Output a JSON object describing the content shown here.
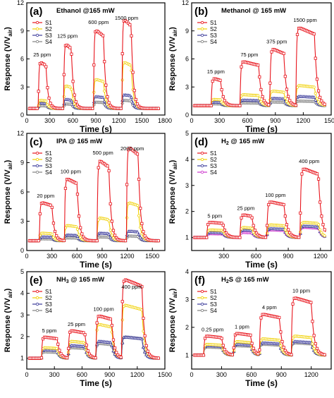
{
  "chart_data": [
    {
      "type": "line",
      "panel_label": "(a)",
      "title": "Ethanol @165 mW",
      "xlabel": "Time (s)",
      "ylabel": "Response (V/V",
      "ylabel_sub": "air",
      "ylabel_end": ")",
      "xlim": [
        0,
        1800
      ],
      "ylim": [
        0,
        12
      ],
      "xticks": [
        0,
        300,
        600,
        900,
        1200,
        1500,
        1800
      ],
      "yticks": [
        0,
        3,
        6,
        9,
        12
      ],
      "pulses": [
        [
          150,
          250
        ],
        [
          480,
          580
        ],
        [
          870,
          1000
        ],
        [
          1240,
          1360
        ]
      ],
      "baseline": 0.7,
      "series": [
        {
          "name": "S1",
          "color": "#e8141c",
          "peaks": [
            5.8,
            7.8,
            9.3,
            10.5
          ]
        },
        {
          "name": "S2",
          "color": "#f0d000",
          "peaks": [
            1.6,
            3.2,
            3.9,
            5.8
          ]
        },
        {
          "name": "S3",
          "color": "#3a3a9a",
          "peaks": [
            1.3,
            1.7,
            2.0,
            2.2
          ]
        },
        {
          "name": "S4",
          "color": "#808080",
          "peaks": [
            1.0,
            1.2,
            1.4,
            1.6
          ]
        }
      ],
      "annotations": [
        "25 ppm",
        "125 ppm",
        "600 ppm",
        "1500 ppm"
      ],
      "legend": "top-left"
    },
    {
      "type": "line",
      "panel_label": "(b)",
      "title": "Methanol @ 165 mW",
      "xlabel": "Time (s)",
      "ylabel": "Response (V/V",
      "ylabel_sub": "air",
      "ylabel_end": ")",
      "xlim": [
        0,
        1500
      ],
      "ylim": [
        0,
        12
      ],
      "xticks": [
        0,
        300,
        600,
        900,
        1200,
        1500
      ],
      "yticks": [
        0,
        3,
        6,
        9,
        12
      ],
      "pulses": [
        [
          210,
          310
        ],
        [
          520,
          720
        ],
        [
          840,
          990
        ],
        [
          1120,
          1320
        ]
      ],
      "baseline": 1.0,
      "series": [
        {
          "name": "S1",
          "color": "#e8141c",
          "peaks": [
            4.0,
            5.8,
            7.2,
            9.5
          ]
        },
        {
          "name": "S2",
          "color": "#f0d000",
          "peaks": [
            1.7,
            2.2,
            2.6,
            3.2
          ]
        },
        {
          "name": "S3",
          "color": "#3a3a9a",
          "peaks": [
            1.4,
            1.6,
            1.8,
            2.0
          ]
        },
        {
          "name": "S4",
          "color": "#808080",
          "peaks": [
            1.2,
            1.3,
            1.4,
            1.5
          ]
        }
      ],
      "annotations": [
        "15 ppm",
        "75 ppm",
        "375 ppm",
        "1500 ppm"
      ],
      "legend": "top-left"
    },
    {
      "type": "line",
      "panel_label": "(c)",
      "title": "IPA @ 165 mW",
      "xlabel": "Time (s)",
      "ylabel": "Response (V/V",
      "ylabel_sub": "air",
      "ylabel_end": ")",
      "xlim": [
        0,
        1650
      ],
      "ylim": [
        0,
        12
      ],
      "xticks": [
        0,
        300,
        600,
        900,
        1200,
        1500
      ],
      "yticks": [
        0,
        3,
        6,
        9,
        12
      ],
      "pulses": [
        [
          150,
          300
        ],
        [
          450,
          600
        ],
        [
          840,
          980
        ],
        [
          1190,
          1330
        ]
      ],
      "baseline": 1.0,
      "series": [
        {
          "name": "S1",
          "color": "#e8141c",
          "peaks": [
            5.0,
            7.5,
            9.4,
            10.8
          ]
        },
        {
          "name": "S2",
          "color": "#f0d000",
          "peaks": [
            1.8,
            2.6,
            3.4,
            5.0
          ]
        },
        {
          "name": "S3",
          "color": "#3a3a9a",
          "peaks": [
            1.4,
            1.6,
            1.8,
            2.0
          ]
        },
        {
          "name": "S4",
          "color": "#808080",
          "peaks": [
            1.2,
            1.3,
            1.4,
            1.5
          ]
        }
      ],
      "annotations": [
        "20 ppm",
        "100 ppm",
        "500 ppm",
        "2000 ppm"
      ],
      "legend": "top-left"
    },
    {
      "type": "line",
      "panel_label": "(d)",
      "title": "H",
      "title_sub": "2",
      "title_end": " @ 165 mW",
      "xlabel": "Time (s)",
      "ylabel": "Response (V/V",
      "ylabel_sub": "air",
      "ylabel_end": ")",
      "xlim": [
        0,
        1300
      ],
      "ylim": [
        0.5,
        5
      ],
      "xticks": [
        300,
        600,
        900,
        1200,
        1500
      ],
      "yticks": [
        1,
        2,
        3,
        4,
        5
      ],
      "pulses": [
        [
          140,
          290
        ],
        [
          450,
          560
        ],
        [
          700,
          860
        ],
        [
          1010,
          1180
        ]
      ],
      "baseline": 1.0,
      "series": [
        {
          "name": "S1",
          "color": "#e8141c",
          "peaks": [
            1.6,
            1.9,
            2.4,
            3.7
          ]
        },
        {
          "name": "S2",
          "color": "#f0d000",
          "peaks": [
            1.3,
            1.4,
            1.5,
            1.6
          ]
        },
        {
          "name": "S3",
          "color": "#3a3a9a",
          "peaks": [
            1.2,
            1.3,
            1.35,
            1.45
          ]
        },
        {
          "name": "S4",
          "color": "#cc33cc",
          "peaks": [
            1.15,
            1.2,
            1.3,
            1.4
          ]
        }
      ],
      "annotations": [
        "5 ppm",
        "25 ppm",
        "100 ppm",
        "400 ppm"
      ],
      "legend": "top-left"
    },
    {
      "type": "line",
      "panel_label": "(e)",
      "title": "NH",
      "title_sub": "3",
      "title_end": " @ 165 mW",
      "xlabel": "Time (s)",
      "ylabel": "Response (V/V",
      "ylabel_sub": "air",
      "ylabel_end": ")",
      "xlim": [
        0,
        1500
      ],
      "ylim": [
        0.5,
        5
      ],
      "xticks": [
        0,
        300,
        600,
        900,
        1200,
        1500
      ],
      "yticks": [
        1,
        2,
        3,
        4,
        5
      ],
      "pulses": [
        [
          160,
          330
        ],
        [
          450,
          630
        ],
        [
          750,
          920
        ],
        [
          1030,
          1250
        ]
      ],
      "baseline": 1.0,
      "series": [
        {
          "name": "S1",
          "color": "#e8141c",
          "peaks": [
            2.0,
            2.3,
            3.0,
            4.7
          ]
        },
        {
          "name": "S2",
          "color": "#f0d000",
          "peaks": [
            1.5,
            1.8,
            2.6,
            3.5
          ]
        },
        {
          "name": "S3",
          "color": "#3a3a9a",
          "peaks": [
            1.4,
            1.6,
            1.8,
            2.0
          ]
        },
        {
          "name": "S4",
          "color": "#808080",
          "peaks": [
            1.3,
            1.5,
            1.7,
            2.0
          ]
        }
      ],
      "annotations": [
        "5 ppm",
        "25 ppm",
        "100 ppm",
        "400 ppm"
      ],
      "legend": "top-left"
    },
    {
      "type": "line",
      "panel_label": "(f)",
      "title": "H",
      "title_sub": "2",
      "title_end": "S @ 165 mW",
      "xlabel": "Time (s)",
      "ylabel": "Response (V/V",
      "ylabel_sub": "air",
      "ylabel_end": ")",
      "xlim": [
        0,
        1400
      ],
      "ylim": [
        0.5,
        4
      ],
      "xticks": [
        0,
        300,
        600,
        900,
        1200
      ],
      "yticks": [
        1,
        2,
        3,
        4
      ],
      "pulses": [
        [
          120,
          300
        ],
        [
          420,
          590
        ],
        [
          680,
          880
        ],
        [
          1000,
          1200
        ]
      ],
      "baseline": 1.0,
      "series": [
        {
          "name": "S1",
          "color": "#e8141c",
          "peaks": [
            1.7,
            1.8,
            2.5,
            3.1
          ]
        },
        {
          "name": "S2",
          "color": "#f0d000",
          "peaks": [
            1.4,
            1.5,
            1.6,
            1.7
          ]
        },
        {
          "name": "S3",
          "color": "#3a3a9a",
          "peaks": [
            1.35,
            1.4,
            1.45,
            1.5
          ]
        },
        {
          "name": "S4",
          "color": "#808080",
          "peaks": [
            1.3,
            1.35,
            1.4,
            1.45
          ]
        }
      ],
      "annotations": [
        "0.25 ppm",
        "1 ppm",
        "4 ppm",
        "10 ppm"
      ],
      "legend": "top-left"
    }
  ]
}
